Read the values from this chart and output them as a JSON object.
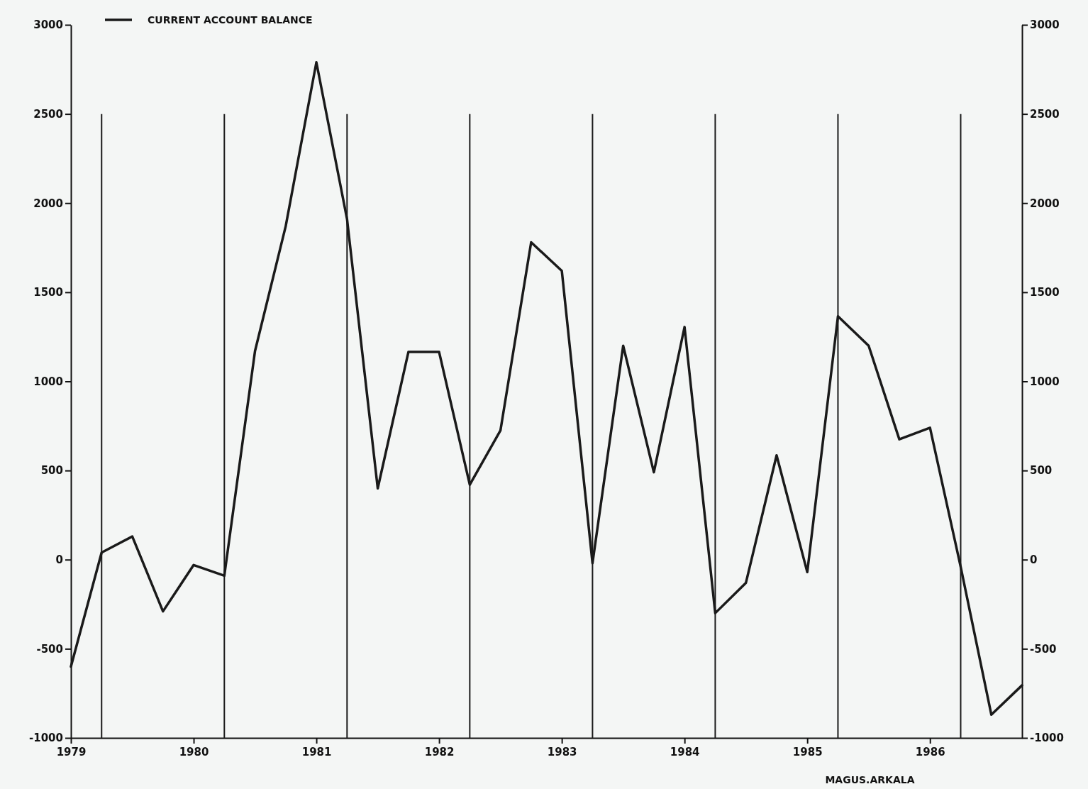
{
  "chart_data": {
    "type": "line",
    "x": [
      1979,
      1979.25,
      1979.5,
      1979.75,
      1980,
      1980.25,
      1980.5,
      1980.75,
      1981,
      1981.25,
      1981.5,
      1981.75,
      1982,
      1982.25,
      1982.5,
      1982.75,
      1983,
      1983.25,
      1983.5,
      1983.75,
      1984,
      1984.25,
      1984.5,
      1984.75,
      1985,
      1985.25,
      1985.5,
      1985.75,
      1986,
      1986.25,
      1986.5,
      1986.75
    ],
    "series": [
      {
        "name": "CURRENT ACCOUNT BALANCE",
        "color": "#1a1a1a",
        "values": [
          -600,
          40,
          130,
          -290,
          -30,
          -90,
          1170,
          1870,
          2790,
          1910,
          400,
          1165,
          1165,
          420,
          725,
          1780,
          1620,
          -20,
          1200,
          490,
          1305,
          -300,
          -130,
          585,
          -70,
          1365,
          1200,
          675,
          740,
          -40,
          -870,
          -705
        ]
      }
    ],
    "xlim": [
      1979,
      1986.75
    ],
    "xticks": [
      1979,
      1980,
      1981,
      1982,
      1983,
      1984,
      1985,
      1986
    ],
    "ylim": [
      -1000,
      3000
    ],
    "yticks": [
      -1000,
      -500,
      0,
      500,
      1000,
      1500,
      2000,
      2500,
      3000
    ],
    "y2lim": [
      -1000,
      3000
    ],
    "y2ticks": [
      -1000,
      -500,
      0,
      500,
      1000,
      1500,
      2000,
      2500,
      3000
    ],
    "ref_lines": [
      {
        "axis": "x",
        "value": 1979.25,
        "color": "#1a1a1a"
      },
      {
        "axis": "x",
        "value": 1980.25,
        "color": "#1a1a1a"
      },
      {
        "axis": "x",
        "value": 1981.25,
        "color": "#1a1a1a"
      },
      {
        "axis": "x",
        "value": 1982.25,
        "color": "#1a1a1a"
      },
      {
        "axis": "x",
        "value": 1983.25,
        "color": "#1a1a1a"
      },
      {
        "axis": "x",
        "value": 1984.25,
        "color": "#1a1a1a"
      },
      {
        "axis": "x",
        "value": 1985.25,
        "color": "#1a1a1a"
      },
      {
        "axis": "x",
        "value": 1986.25,
        "color": "#1a1a1a"
      }
    ],
    "annotations": [
      "MAGUS.ARKALA"
    ],
    "legend": "top left",
    "grid": false,
    "marker": "none",
    "line_style": "solid"
  }
}
